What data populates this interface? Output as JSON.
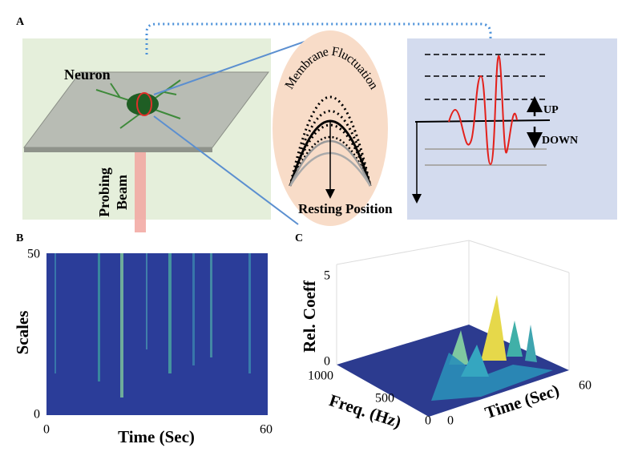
{
  "panel_a": {
    "label": "A",
    "neuron": "Neuron",
    "probing_beam": [
      "Probing",
      "Beam"
    ],
    "membrane_fluctuation": "Membrane Fluctuation",
    "resting_position": "Resting Position",
    "up": "UP",
    "down": "DOWN"
  },
  "panel_b": {
    "label": "B",
    "y_label": "Scales",
    "y_ticks": [
      0,
      50
    ],
    "x_label": "Time (Sec)",
    "x_ticks": [
      0,
      60
    ]
  },
  "panel_c": {
    "label": "C",
    "z_label": "Rel. Coeff",
    "z_ticks": [
      0,
      5
    ],
    "freq_label": "Freq. (Hz)",
    "freq_ticks": [
      0,
      500,
      1000
    ],
    "time_label": "Time (Sec)",
    "time_ticks": [
      0,
      60
    ]
  }
}
